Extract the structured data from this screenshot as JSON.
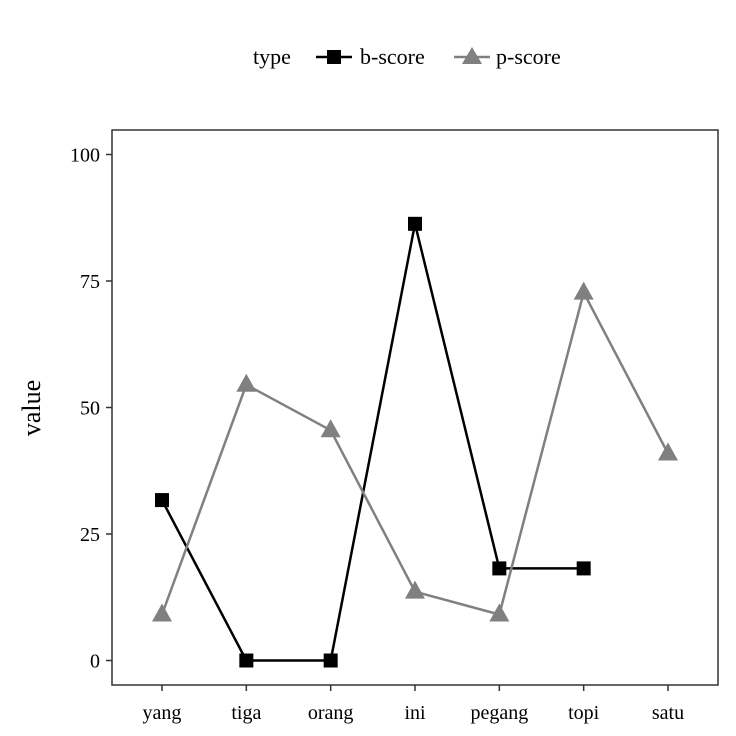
{
  "chart_data": {
    "type": "line",
    "xlabel": "",
    "ylabel": "value",
    "categories": [
      "yang",
      "tiga",
      "orang",
      "ini",
      "pegang",
      "topi",
      "satu"
    ],
    "ylim": [
      -5,
      105
    ],
    "yticks": [
      0,
      25,
      50,
      75,
      100
    ],
    "grid": false,
    "legend": {
      "title": "type",
      "placement": "top"
    },
    "series": [
      {
        "name": "b-score",
        "color": "#000000",
        "marker": "square",
        "values": [
          31.7,
          0,
          0,
          86.3,
          18.2,
          18.2,
          null
        ]
      },
      {
        "name": "p-score",
        "color": "#808080",
        "marker": "triangle",
        "values": [
          9.1,
          54.5,
          45.5,
          13.6,
          9.1,
          72.7,
          40.9
        ]
      }
    ]
  }
}
